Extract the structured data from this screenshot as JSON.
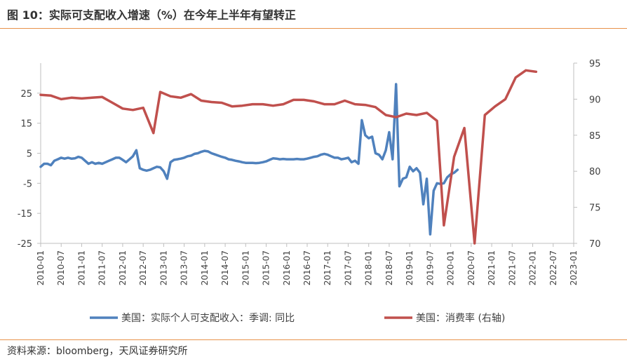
{
  "header": {
    "title": "图 10：实际可支配收入增速（%）在今年上半年有望转正"
  },
  "footer": {
    "source": "资料来源：bloomberg，天风证券研究所"
  },
  "colors": {
    "series1": "#4F81BD",
    "series2": "#C0504D",
    "rule": "#E8924A",
    "axis": "#BFBFBF"
  },
  "chart_data": {
    "type": "line",
    "title": "实际可支配收入增速（%）在今年上半年有望转正",
    "x_tick_labels": [
      "2010-01",
      "2010-07",
      "2011-01",
      "2011-07",
      "2012-01",
      "2012-07",
      "2013-01",
      "2013-07",
      "2014-01",
      "2014-07",
      "2015-01",
      "2015-07",
      "2016-01",
      "2016-07",
      "2017-01",
      "2017-07",
      "2018-01",
      "2018-07",
      "2019-01",
      "2019-07",
      "2020-01",
      "2020-07",
      "2021-01",
      "2021-07",
      "2022-01",
      "2022-07",
      "2023-01"
    ],
    "y_left": {
      "ticks": [
        25,
        15,
        5,
        -5,
        -15,
        -25
      ],
      "range": [
        -25,
        35
      ]
    },
    "y_right": {
      "ticks": [
        95,
        90,
        85,
        80,
        75,
        70
      ],
      "range": [
        70,
        95
      ]
    },
    "legend_position": "bottom",
    "series": [
      {
        "name": "美国：实际个人可支配收入：季调: 同比",
        "axis": "left",
        "color": "#4F81BD",
        "points": [
          [
            0,
            0.5
          ],
          [
            1,
            1.5
          ],
          [
            2,
            1.5
          ],
          [
            3,
            1.0
          ],
          [
            4,
            2.5
          ],
          [
            5,
            3.0
          ],
          [
            6,
            3.5
          ],
          [
            7,
            3.2
          ],
          [
            8,
            3.5
          ],
          [
            9,
            3.2
          ],
          [
            10,
            3.3
          ],
          [
            11,
            3.8
          ],
          [
            12,
            3.5
          ],
          [
            13,
            2.5
          ],
          [
            14,
            1.5
          ],
          [
            15,
            2.0
          ],
          [
            16,
            1.5
          ],
          [
            17,
            1.8
          ],
          [
            18,
            1.5
          ],
          [
            19,
            2.0
          ],
          [
            20,
            2.5
          ],
          [
            21,
            3.0
          ],
          [
            22,
            3.5
          ],
          [
            23,
            3.5
          ],
          [
            24,
            2.8
          ],
          [
            25,
            2.0
          ],
          [
            26,
            3.0
          ],
          [
            27,
            4.0
          ],
          [
            28,
            6.0
          ],
          [
            29,
            0.0
          ],
          [
            30,
            -0.5
          ],
          [
            31,
            -0.8
          ],
          [
            32,
            -0.5
          ],
          [
            33,
            0.0
          ],
          [
            34,
            0.5
          ],
          [
            35,
            0.3
          ],
          [
            36,
            -1.0
          ],
          [
            37,
            -3.5
          ],
          [
            38,
            2.0
          ],
          [
            39,
            2.8
          ],
          [
            40,
            3.0
          ],
          [
            41,
            3.2
          ],
          [
            42,
            3.5
          ],
          [
            43,
            4.0
          ],
          [
            44,
            4.2
          ],
          [
            45,
            4.8
          ],
          [
            46,
            5.0
          ],
          [
            47,
            5.5
          ],
          [
            48,
            5.8
          ],
          [
            49,
            5.6
          ],
          [
            50,
            5.0
          ],
          [
            51,
            4.6
          ],
          [
            52,
            4.2
          ],
          [
            53,
            3.8
          ],
          [
            54,
            3.5
          ],
          [
            55,
            3.0
          ],
          [
            56,
            2.8
          ],
          [
            57,
            2.5
          ],
          [
            58,
            2.3
          ],
          [
            59,
            2.0
          ],
          [
            60,
            1.8
          ],
          [
            61,
            1.8
          ],
          [
            62,
            1.8
          ],
          [
            63,
            1.7
          ],
          [
            64,
            1.8
          ],
          [
            65,
            2.0
          ],
          [
            66,
            2.3
          ],
          [
            67,
            2.8
          ],
          [
            68,
            3.3
          ],
          [
            69,
            3.2
          ],
          [
            70,
            3.0
          ],
          [
            71,
            3.1
          ],
          [
            72,
            3.0
          ],
          [
            73,
            3.0
          ],
          [
            74,
            3.0
          ],
          [
            75,
            3.1
          ],
          [
            76,
            3.0
          ],
          [
            77,
            3.0
          ],
          [
            78,
            3.2
          ],
          [
            79,
            3.5
          ],
          [
            80,
            3.8
          ],
          [
            81,
            4.0
          ],
          [
            82,
            4.5
          ],
          [
            83,
            4.8
          ],
          [
            84,
            4.5
          ],
          [
            85,
            4.0
          ],
          [
            86,
            3.5
          ],
          [
            87,
            3.5
          ],
          [
            88,
            3.0
          ],
          [
            89,
            3.2
          ],
          [
            90,
            3.5
          ],
          [
            91,
            2.0
          ],
          [
            92,
            2.5
          ],
          [
            93,
            1.5
          ],
          [
            94,
            16.0
          ],
          [
            95,
            11.0
          ],
          [
            96,
            10.0
          ],
          [
            97,
            10.5
          ],
          [
            98,
            5.0
          ],
          [
            99,
            4.5
          ],
          [
            100,
            3.0
          ],
          [
            101,
            6.0
          ],
          [
            102,
            12.0
          ],
          [
            103,
            3.0
          ],
          [
            104,
            28.0
          ],
          [
            105,
            -6.0
          ],
          [
            106,
            -3.5
          ],
          [
            107,
            -3.0
          ],
          [
            108,
            0.5
          ],
          [
            109,
            -1.0
          ],
          [
            110,
            0.0
          ],
          [
            111,
            -1.5
          ],
          [
            112,
            -12.0
          ],
          [
            113,
            -3.5
          ],
          [
            114,
            -22.0
          ],
          [
            115,
            -7.5
          ],
          [
            116,
            -5.0
          ],
          [
            117,
            -5.2
          ],
          [
            118,
            -5.0
          ],
          [
            119,
            -3.0
          ],
          [
            120,
            -2.0
          ],
          [
            121,
            -1.5
          ],
          [
            122,
            -0.5
          ]
        ]
      },
      {
        "name": "美国：消费率 (右轴)",
        "axis": "right",
        "color": "#C0504D",
        "points": [
          [
            0,
            90.6
          ],
          [
            3,
            90.5
          ],
          [
            6,
            90.0
          ],
          [
            9,
            90.2
          ],
          [
            12,
            90.1
          ],
          [
            15,
            90.2
          ],
          [
            18,
            90.3
          ],
          [
            21,
            89.5
          ],
          [
            24,
            88.7
          ],
          [
            27,
            88.5
          ],
          [
            30,
            88.8
          ],
          [
            33,
            85.3
          ],
          [
            35,
            91.0
          ],
          [
            38,
            90.4
          ],
          [
            41,
            90.2
          ],
          [
            44,
            90.7
          ],
          [
            47,
            89.8
          ],
          [
            50,
            89.6
          ],
          [
            53,
            89.5
          ],
          [
            56,
            89.0
          ],
          [
            59,
            89.1
          ],
          [
            62,
            89.3
          ],
          [
            65,
            89.3
          ],
          [
            68,
            89.1
          ],
          [
            71,
            89.3
          ],
          [
            74,
            89.9
          ],
          [
            77,
            89.9
          ],
          [
            80,
            89.7
          ],
          [
            83,
            89.3
          ],
          [
            86,
            89.3
          ],
          [
            89,
            89.8
          ],
          [
            92,
            89.3
          ],
          [
            95,
            89.2
          ],
          [
            98,
            88.9
          ],
          [
            101,
            87.8
          ],
          [
            104,
            87.5
          ],
          [
            107,
            88.0
          ],
          [
            110,
            87.8
          ],
          [
            113,
            88.1
          ],
          [
            116,
            87.0
          ],
          [
            118,
            72.5
          ],
          [
            121,
            82.0
          ],
          [
            124,
            86.0
          ],
          [
            127,
            70.0
          ],
          [
            130,
            87.8
          ],
          [
            133,
            89.0
          ],
          [
            136,
            90.0
          ],
          [
            139,
            93.0
          ],
          [
            142,
            94.0
          ],
          [
            145,
            93.8
          ]
        ]
      }
    ]
  }
}
